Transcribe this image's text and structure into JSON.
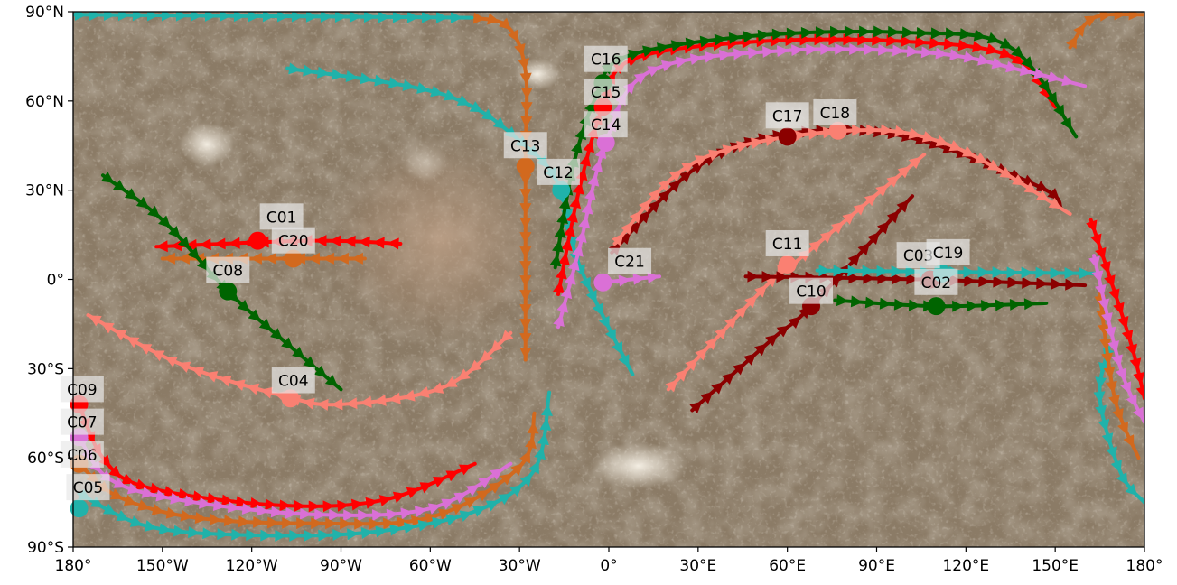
{
  "chart_data": {
    "type": "map",
    "projection": "equirectangular",
    "x_range": [
      -180,
      180
    ],
    "y_range": [
      -90,
      90
    ],
    "x_ticks": [
      "180°",
      "150°W",
      "120°W",
      "90°W",
      "60°W",
      "30°W",
      "0°",
      "30°E",
      "60°E",
      "90°E",
      "120°E",
      "150°E",
      "180°"
    ],
    "y_ticks": [
      "90°N",
      "60°N",
      "30°N",
      "0°",
      "30°S",
      "60°S",
      "90°S"
    ],
    "grid": false,
    "colors": {
      "orange": "#d2691e",
      "red": "#ff0000",
      "dark_red": "#8b0000",
      "green": "#006400",
      "teal": "#20b2aa",
      "violet": "#da70d6",
      "salmon": "#fa8072"
    },
    "tracks": [
      {
        "name": "C01",
        "color": "red",
        "points": [
          [
            -70,
            12
          ],
          [
            -100,
            13
          ],
          [
            -152,
            11
          ]
        ],
        "marker": [
          -118,
          13
        ]
      },
      {
        "name": "C20",
        "color": "orange",
        "points": [
          [
            -82,
            7
          ],
          [
            -150,
            7
          ]
        ],
        "marker": [
          -106,
          7
        ]
      },
      {
        "name": "C08",
        "color": "green",
        "points": [
          [
            -170,
            35
          ],
          [
            -150,
            20
          ],
          [
            -128,
            -4
          ],
          [
            -110,
            -20
          ],
          [
            -90,
            -37
          ]
        ],
        "marker": [
          -128,
          -4
        ]
      },
      {
        "name": "C04",
        "color": "salmon",
        "points": [
          [
            -33,
            -18
          ],
          [
            -55,
            -36
          ],
          [
            -90,
            -42
          ],
          [
            -110,
            -39
          ],
          [
            -145,
            -28
          ],
          [
            -175,
            -12
          ]
        ],
        "marker": [
          -107,
          -40
        ]
      },
      {
        "name": "C13",
        "color": "orange",
        "points": [
          [
            -46,
            88
          ],
          [
            -34,
            85
          ],
          [
            -28,
            70
          ],
          [
            -28,
            38
          ],
          [
            -28,
            -27
          ]
        ],
        "marker": [
          -28,
          38
        ]
      },
      {
        "name": "C12",
        "color": "teal",
        "points": [
          [
            -108,
            71
          ],
          [
            -55,
            62
          ],
          [
            -28,
            45
          ],
          [
            -16,
            30
          ],
          [
            -10,
            5
          ],
          [
            8,
            -32
          ]
        ],
        "marker": [
          -16,
          30
        ]
      },
      {
        "name": "C14",
        "color": "red",
        "points": [
          [
            -17,
            -5
          ],
          [
            -10,
            30
          ],
          [
            -2,
            58
          ],
          [
            8,
            74
          ],
          [
            50,
            80
          ],
          [
            100,
            80
          ],
          [
            135,
            75
          ],
          [
            150,
            58
          ]
        ],
        "marker": [
          -2,
          58
        ]
      },
      {
        "name": "C15",
        "color": "green",
        "points": [
          [
            -18,
            4
          ],
          [
            -12,
            38
          ],
          [
            -4,
            62
          ],
          [
            6,
            75
          ],
          [
            50,
            82
          ],
          [
            100,
            83
          ],
          [
            135,
            78
          ],
          [
            157,
            48
          ]
        ],
        "marker": [
          -2,
          66
        ]
      },
      {
        "name": "C16",
        "color": "violet",
        "points": [
          [
            -17,
            -16
          ],
          [
            -10,
            10
          ],
          [
            -1,
            46
          ],
          [
            14,
            70
          ],
          [
            60,
            77
          ],
          [
            110,
            76
          ],
          [
            140,
            70
          ],
          [
            160,
            65
          ]
        ],
        "marker": [
          -1,
          46
        ]
      },
      {
        "name": "C21",
        "color": "violet",
        "points": [
          [
            -2,
            -1
          ],
          [
            17,
            1
          ]
        ],
        "marker": [
          -2,
          -1
        ]
      },
      {
        "name": "C17",
        "color": "dark_red",
        "points": [
          [
            1,
            9
          ],
          [
            30,
            38
          ],
          [
            60,
            49
          ],
          [
            100,
            48
          ],
          [
            145,
            31
          ],
          [
            152,
            24
          ]
        ],
        "marker": [
          60,
          48
        ]
      },
      {
        "name": "C18",
        "color": "salmon",
        "points": [
          [
            2,
            12
          ],
          [
            30,
            40
          ],
          [
            80,
            50
          ],
          [
            115,
            45
          ],
          [
            155,
            22
          ]
        ],
        "marker": [
          77,
          50
        ]
      },
      {
        "name": "C11",
        "color": "salmon",
        "points": [
          [
            20,
            -37
          ],
          [
            55,
            0
          ],
          [
            63,
            6
          ],
          [
            106,
            42
          ]
        ],
        "marker": [
          60,
          5
        ]
      },
      {
        "name": "C10",
        "color": "dark_red",
        "points": [
          [
            28,
            -44
          ],
          [
            55,
            -20
          ],
          [
            68,
            -9
          ],
          [
            102,
            28
          ]
        ],
        "marker": [
          68,
          -9
        ]
      },
      {
        "name": "C03",
        "color": "dark_red",
        "points": [
          [
            46,
            1
          ],
          [
            105,
            0
          ],
          [
            160,
            -2
          ]
        ],
        "marker": [
          108,
          0
        ]
      },
      {
        "name": "C19",
        "color": "teal",
        "points": [
          [
            70,
            3
          ],
          [
            165,
            2
          ]
        ],
        "marker": [
          112,
          2
        ]
      },
      {
        "name": "C02",
        "color": "green",
        "points": [
          [
            76,
            -7
          ],
          [
            110,
            -9
          ],
          [
            147,
            -8
          ]
        ],
        "marker": [
          110,
          -9
        ]
      },
      {
        "name": "C09",
        "color": "red",
        "points": [
          [
            -178,
            -42
          ],
          [
            -170,
            -60
          ],
          [
            -155,
            -70
          ],
          [
            -110,
            -76
          ],
          [
            -75,
            -74
          ],
          [
            -45,
            -62
          ]
        ],
        "marker": [
          -178,
          -42
        ]
      },
      {
        "name": "C07",
        "color": "violet",
        "points": [
          [
            -178,
            -53
          ],
          [
            -168,
            -67
          ],
          [
            -145,
            -74
          ],
          [
            -100,
            -79
          ],
          [
            -60,
            -77
          ],
          [
            -33,
            -62
          ]
        ],
        "marker": [
          -178,
          -53
        ]
      },
      {
        "name": "C06",
        "color": "orange",
        "points": [
          [
            -178,
            -62
          ],
          [
            -165,
            -73
          ],
          [
            -140,
            -80
          ],
          [
            -100,
            -82
          ],
          [
            -60,
            -80
          ],
          [
            -30,
            -63
          ],
          [
            -25,
            -45
          ]
        ],
        "marker": [
          -178,
          -62
        ]
      },
      {
        "name": "C05",
        "color": "teal",
        "points": [
          [
            -178,
            -72
          ],
          [
            -155,
            -83
          ],
          [
            -120,
            -86
          ],
          [
            -80,
            -85
          ],
          [
            -45,
            -78
          ],
          [
            -25,
            -64
          ],
          [
            -20,
            -38
          ]
        ],
        "marker": [
          -178,
          -77
        ]
      },
      {
        "name": "C05",
        "color": "teal",
        "points": [
          [
            168,
            -23
          ],
          [
            165,
            -40
          ],
          [
            172,
            -65
          ],
          [
            180,
            -75
          ]
        ],
        "marker": null
      },
      {
        "name": "C06",
        "color": "orange",
        "points": [
          [
            165,
            -5
          ],
          [
            170,
            -40
          ],
          [
            178,
            -60
          ]
        ],
        "marker": null
      },
      {
        "name": "C07",
        "color": "violet",
        "points": [
          [
            163,
            8
          ],
          [
            172,
            -30
          ],
          [
            180,
            -48
          ]
        ],
        "marker": null
      },
      {
        "name": "C09",
        "color": "red",
        "points": [
          [
            162,
            20
          ],
          [
            175,
            -20
          ],
          [
            180,
            -40
          ]
        ],
        "marker": null
      },
      {
        "name": "C13",
        "color": "orange",
        "points": [
          [
            155,
            78
          ],
          [
            163,
            88
          ],
          [
            180,
            89
          ]
        ],
        "marker": null
      },
      {
        "name": "C12",
        "color": "teal",
        "points": [
          [
            -180,
            89
          ],
          [
            -46,
            88
          ]
        ],
        "marker": null
      }
    ],
    "labels": [
      {
        "text": "C01",
        "lon": -110,
        "lat": 21
      },
      {
        "text": "C20",
        "lon": -106,
        "lat": 13
      },
      {
        "text": "C08",
        "lon": -128,
        "lat": 3
      },
      {
        "text": "C04",
        "lon": -106,
        "lat": -34
      },
      {
        "text": "C13",
        "lon": -28,
        "lat": 45
      },
      {
        "text": "C12",
        "lon": -17,
        "lat": 36
      },
      {
        "text": "C14",
        "lon": -1,
        "lat": 52
      },
      {
        "text": "C15",
        "lon": -1,
        "lat": 63
      },
      {
        "text": "C16",
        "lon": -1,
        "lat": 74
      },
      {
        "text": "C21",
        "lon": 7,
        "lat": 6
      },
      {
        "text": "C17",
        "lon": 60,
        "lat": 55
      },
      {
        "text": "C18",
        "lon": 76,
        "lat": 56
      },
      {
        "text": "C11",
        "lon": 60,
        "lat": 12
      },
      {
        "text": "C10",
        "lon": 68,
        "lat": -4
      },
      {
        "text": "C03",
        "lon": 104,
        "lat": 8
      },
      {
        "text": "C19",
        "lon": 114,
        "lat": 9
      },
      {
        "text": "C02",
        "lon": 110,
        "lat": -1
      },
      {
        "text": "C09",
        "lon": -177,
        "lat": -37
      },
      {
        "text": "C07",
        "lon": -177,
        "lat": -48
      },
      {
        "text": "C06",
        "lon": -177,
        "lat": -59
      },
      {
        "text": "C05",
        "lon": -175,
        "lat": -70
      }
    ]
  }
}
